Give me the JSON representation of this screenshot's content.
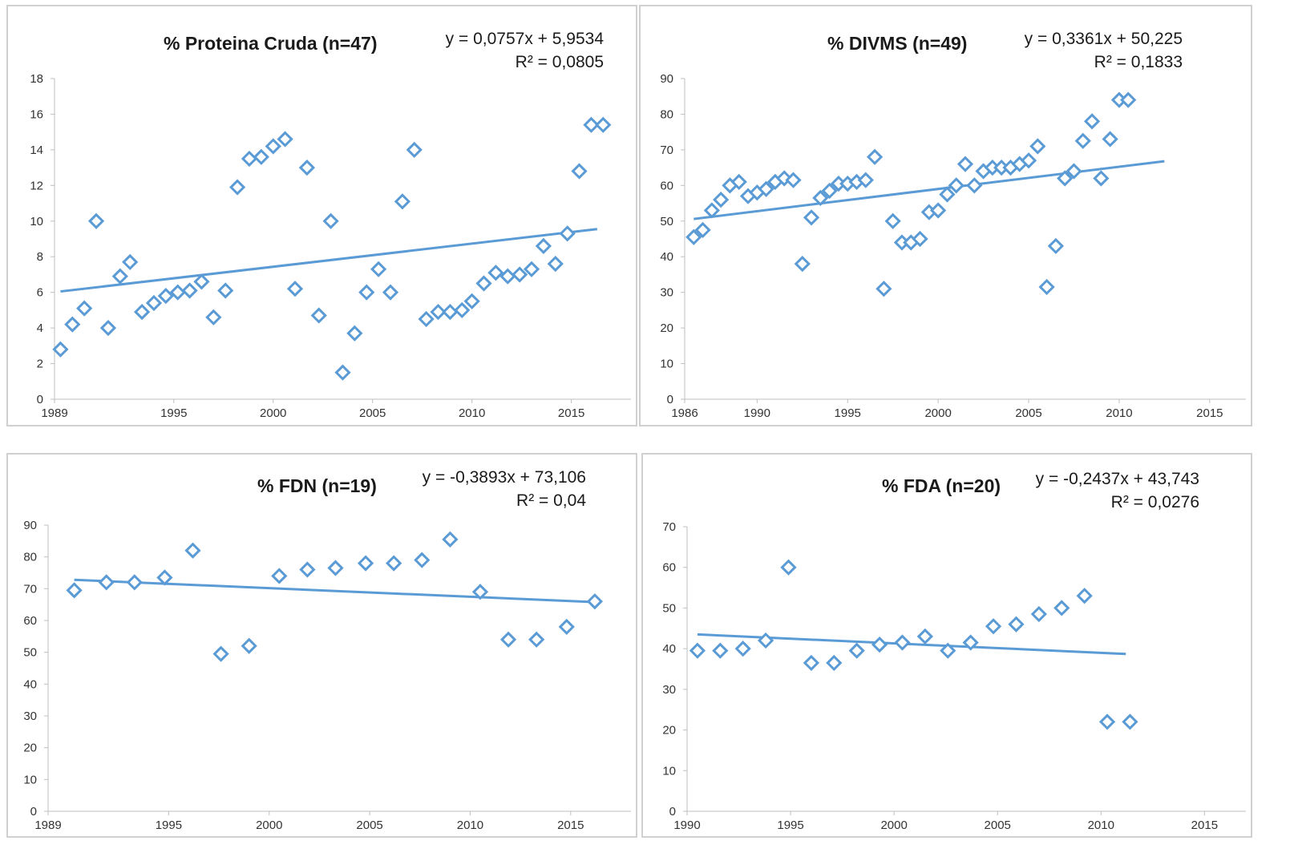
{
  "colors": {
    "marker": "#5b9bd5",
    "trend": "#5b9bd5",
    "axis": "#bfbfbf",
    "text": "#333333"
  },
  "chart_data": [
    {
      "id": "pc",
      "type": "scatter",
      "title": "% Proteina Cruda (n=47)",
      "equation": "y = 0,0757x + 5,9534",
      "r2": "R² = 0,0805",
      "xlim": [
        1989,
        2018
      ],
      "ylim": [
        0,
        18
      ],
      "xticks": [
        1989,
        1995,
        2000,
        2005,
        2010,
        2015
      ],
      "yticks": [
        0,
        2,
        4,
        6,
        8,
        10,
        12,
        14,
        16,
        18
      ],
      "trend": {
        "x": [
          1989.3,
          2016.3
        ],
        "y": [
          6.05,
          9.55
        ]
      },
      "points": {
        "x": [
          1989.3,
          1989.9,
          1990.5,
          1991.1,
          1991.7,
          1992.3,
          1992.8,
          1993.4,
          1994.0,
          1994.6,
          1995.2,
          1995.8,
          1996.4,
          1997.0,
          1997.6,
          1998.2,
          1998.8,
          1999.4,
          2000.0,
          2000.6,
          2001.1,
          2001.7,
          2002.3,
          2002.9,
          2003.5,
          2004.1,
          2004.7,
          2005.3,
          2005.9,
          2006.5,
          2007.1,
          2007.7,
          2008.3,
          2008.9,
          2009.5,
          2010.0,
          2010.6,
          2011.2,
          2011.8,
          2012.4,
          2013.0,
          2013.6,
          2014.2,
          2014.8,
          2015.4,
          2016.0,
          2016.6
        ],
        "y": [
          2.8,
          4.2,
          5.1,
          10.0,
          4.0,
          6.9,
          7.7,
          4.9,
          5.4,
          5.8,
          6.0,
          6.1,
          6.6,
          4.6,
          6.1,
          11.9,
          13.5,
          13.6,
          14.2,
          14.6,
          6.2,
          13.0,
          4.7,
          10.0,
          1.5,
          3.7,
          6.0,
          7.3,
          6.0,
          11.1,
          14.0,
          4.5,
          4.9,
          4.9,
          5.0,
          5.5,
          6.5,
          7.1,
          6.9,
          7.0,
          7.3,
          8.6,
          7.6,
          9.3,
          12.8,
          15.4,
          15.4
        ]
      }
    },
    {
      "id": "divms",
      "type": "scatter",
      "title": "% DIVMS (n=49)",
      "equation": "y = 0,3361x + 50,225",
      "r2": "R² = 0,1833",
      "xlim": [
        1986,
        2017
      ],
      "ylim": [
        0,
        90
      ],
      "xticks": [
        1986,
        1990,
        1995,
        2000,
        2005,
        2010,
        2015
      ],
      "yticks": [
        0,
        10,
        20,
        30,
        40,
        50,
        60,
        70,
        80,
        90
      ],
      "trend": {
        "x": [
          1986.5,
          2012.5
        ],
        "y": [
          50.6,
          66.8
        ]
      },
      "points": {
        "x": [
          1986.5,
          1987.0,
          1987.5,
          1988.0,
          1988.5,
          1989.0,
          1989.5,
          1990.0,
          1990.5,
          1991.0,
          1991.5,
          1992.0,
          1992.5,
          1993.0,
          1993.5,
          1994.0,
          1994.5,
          1995.0,
          1995.5,
          1996.0,
          1996.5,
          1997.0,
          1997.5,
          1998.0,
          1998.5,
          1999.0,
          1999.5,
          2000.0,
          2000.5,
          2001.0,
          2001.5,
          2002.0,
          2002.5,
          2003.0,
          2003.5,
          2004.0,
          2004.5,
          2005.0,
          2005.5,
          2006.0,
          2006.5,
          2007.0,
          2007.5,
          2008.0,
          2008.5,
          2009.0,
          2009.5,
          2010.0,
          2010.5
        ],
        "y": [
          45.5,
          47.5,
          53.0,
          56.0,
          60.0,
          61.0,
          57.0,
          58.0,
          59.0,
          61.0,
          62.0,
          61.5,
          38.0,
          51.0,
          56.5,
          58.5,
          60.5,
          60.5,
          61.0,
          61.5,
          68.0,
          31.0,
          50.0,
          44.0,
          44.0,
          45.0,
          52.5,
          53.0,
          57.5,
          60.0,
          66.0,
          60.0,
          64.0,
          65.0,
          65.0,
          65.0,
          66.0,
          67.0,
          71.0,
          31.5,
          43.0,
          62.0,
          64.0,
          72.5,
          78.0,
          62.0,
          73.0,
          84.0,
          84.0
        ]
      }
    },
    {
      "id": "fdn",
      "type": "scatter",
      "title": "% FDN (n=19)",
      "equation": "y = -0,3893x + 73,106",
      "r2": "R² = 0,04",
      "xlim": [
        1989,
        2018
      ],
      "ylim": [
        0,
        90
      ],
      "xticks": [
        1989,
        1995,
        2000,
        2005,
        2010,
        2015
      ],
      "yticks": [
        0,
        10,
        20,
        30,
        40,
        50,
        60,
        70,
        80,
        90
      ],
      "trend": {
        "x": [
          1990.3,
          2016.5
        ],
        "y": [
          72.8,
          65.7
        ]
      },
      "points": {
        "x": [
          1990.3,
          1991.9,
          1993.3,
          1994.8,
          1996.2,
          1997.6,
          1999.0,
          2000.5,
          2001.9,
          2003.3,
          2004.8,
          2006.2,
          2007.6,
          2009.0,
          2010.5,
          2011.9,
          2013.3,
          2014.8,
          2016.2
        ],
        "y": [
          69.5,
          72.0,
          72.0,
          73.5,
          82.0,
          49.5,
          52.0,
          74.0,
          76.0,
          76.5,
          78.0,
          78.0,
          79.0,
          85.5,
          69.0,
          54.0,
          54.0,
          58.0,
          66.0
        ]
      }
    },
    {
      "id": "fda",
      "type": "scatter",
      "title": "% FDA (n=20)",
      "equation": "y = -0,2437x + 43,743",
      "r2": "R² = 0,0276",
      "xlim": [
        1990,
        2017
      ],
      "ylim": [
        0,
        70
      ],
      "xticks": [
        1990,
        1995,
        2000,
        2005,
        2010,
        2015
      ],
      "yticks": [
        0,
        10,
        20,
        30,
        40,
        50,
        60,
        70
      ],
      "trend": {
        "x": [
          1990.5,
          2011.2
        ],
        "y": [
          43.5,
          38.7
        ]
      },
      "points": {
        "x": [
          1990.5,
          1991.6,
          1992.7,
          1993.8,
          1994.9,
          1996.0,
          1997.1,
          1998.2,
          1999.3,
          2000.4,
          2001.5,
          2002.6,
          2003.7,
          2004.8,
          2005.9,
          2007.0,
          2008.1,
          2009.2,
          2010.3,
          2011.4
        ],
        "y": [
          39.5,
          39.5,
          40.0,
          42.0,
          60.0,
          36.5,
          36.5,
          39.5,
          41.0,
          41.5,
          43.0,
          39.5,
          41.5,
          45.5,
          46.0,
          48.5,
          50.0,
          53.0,
          22.0,
          22.0
        ]
      }
    }
  ]
}
